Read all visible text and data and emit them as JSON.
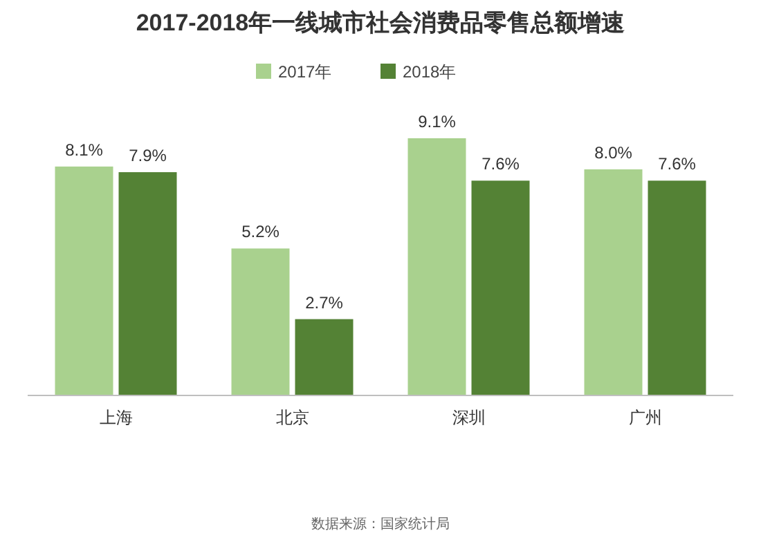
{
  "chart_data": {
    "type": "bar",
    "title": "2017-2018年一线城市社会消费品零售总额增速",
    "categories": [
      "上海",
      "北京",
      "深圳",
      "广州"
    ],
    "series": [
      {
        "name": "2017年",
        "color": "#a9d18e",
        "values": [
          8.1,
          5.2,
          9.1,
          8.0
        ],
        "value_labels": [
          "8.1%",
          "5.2%",
          "9.1%",
          "8.0%"
        ]
      },
      {
        "name": "2018年",
        "color": "#548235",
        "values": [
          7.9,
          2.7,
          7.6,
          7.6
        ],
        "value_labels": [
          "7.9%",
          "2.7%",
          "7.6%",
          "7.6%"
        ]
      }
    ],
    "legend": "top",
    "annotations": [
      "数据来源：国家统计局"
    ]
  }
}
